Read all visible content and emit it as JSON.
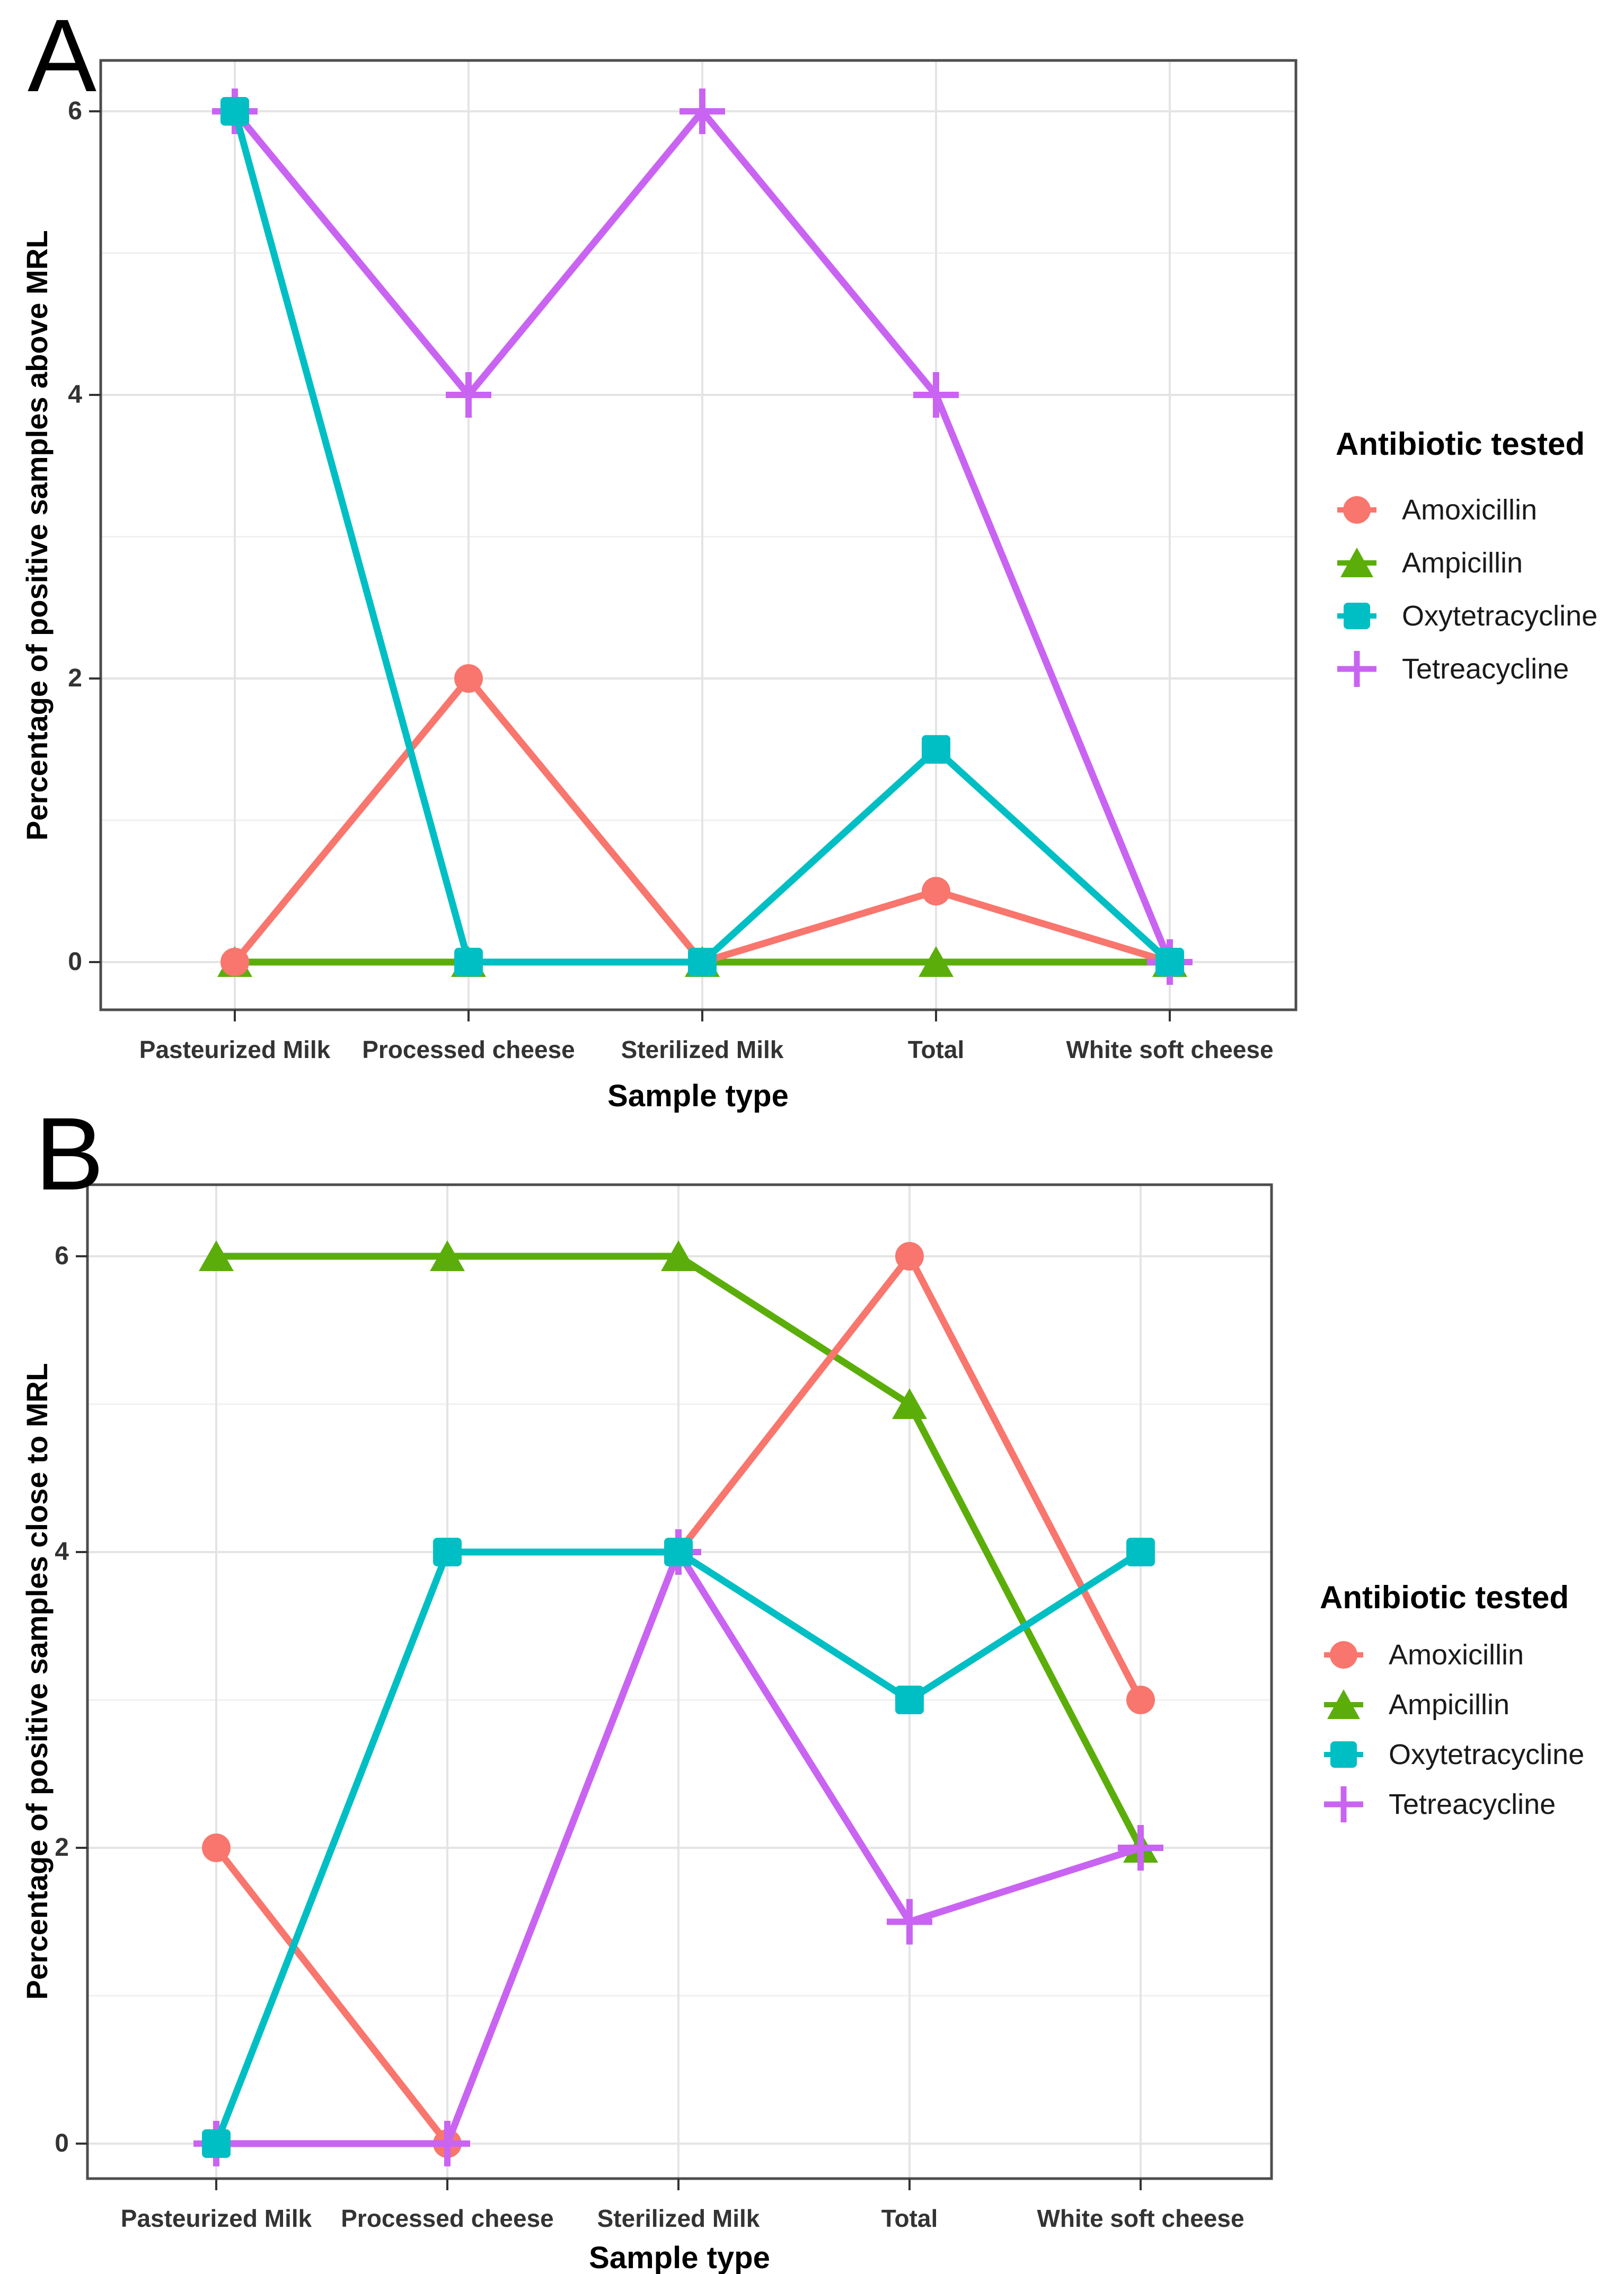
{
  "chart_data": [
    {
      "type": "line",
      "panel_label": "A",
      "xlabel": "Sample type",
      "ylabel": "Percentage of positive samples above MRL",
      "categories": [
        "Pasteurized Milk",
        "Processed cheese",
        "Sterilized Milk",
        "Total",
        "White soft cheese"
      ],
      "y_ticks": [
        0,
        2,
        4,
        6
      ],
      "y_tick_labels": [
        "0",
        "2",
        "4",
        "6"
      ],
      "y_minor_ticks": [
        1,
        3,
        5
      ],
      "ylim": [
        -0.35,
        6.35
      ],
      "grid": true,
      "legend_position": "right",
      "legend_title": "Antibiotic tested",
      "series": [
        {
          "name": "Amoxicillin",
          "marker": "circle",
          "color": "#F8766D",
          "values": [
            0,
            2,
            0,
            0.5,
            0
          ]
        },
        {
          "name": "Ampicillin",
          "marker": "triangle",
          "color": "#5BAE0A",
          "values": [
            0,
            0,
            0,
            0,
            0
          ]
        },
        {
          "name": "Oxytetracycline",
          "marker": "square",
          "color": "#00BFC4",
          "values": [
            6,
            0,
            0,
            1.5,
            0
          ]
        },
        {
          "name": "Tetreacycline",
          "marker": "plus",
          "color": "#C964F2",
          "values": [
            6,
            4,
            6,
            4,
            0
          ]
        }
      ]
    },
    {
      "type": "line",
      "panel_label": "B",
      "xlabel": "Sample type",
      "ylabel": "Percentage of positive samples close to MRL",
      "categories": [
        "Pasteurized Milk",
        "Processed cheese",
        "Sterilized Milk",
        "Total",
        "White soft cheese"
      ],
      "y_ticks": [
        0,
        2,
        4,
        6
      ],
      "y_tick_labels": [
        "0",
        "2",
        "4",
        "6"
      ],
      "y_minor_ticks": [
        1,
        3,
        5
      ],
      "ylim": [
        -0.35,
        6.35
      ],
      "grid": true,
      "legend_position": "right",
      "legend_title": "Antibiotic tested",
      "series": [
        {
          "name": "Amoxicillin",
          "marker": "circle",
          "color": "#F8766D",
          "values": [
            2,
            0,
            4,
            6,
            3
          ]
        },
        {
          "name": "Ampicillin",
          "marker": "triangle",
          "color": "#5BAE0A",
          "values": [
            6,
            6,
            6,
            5,
            2
          ]
        },
        {
          "name": "Oxytetracycline",
          "marker": "square",
          "color": "#00BFC4",
          "values": [
            0,
            4,
            4,
            3,
            4
          ]
        },
        {
          "name": "Tetreacycline",
          "marker": "plus",
          "color": "#C964F2",
          "values": [
            0,
            0,
            4,
            1.5,
            2
          ]
        }
      ]
    }
  ]
}
